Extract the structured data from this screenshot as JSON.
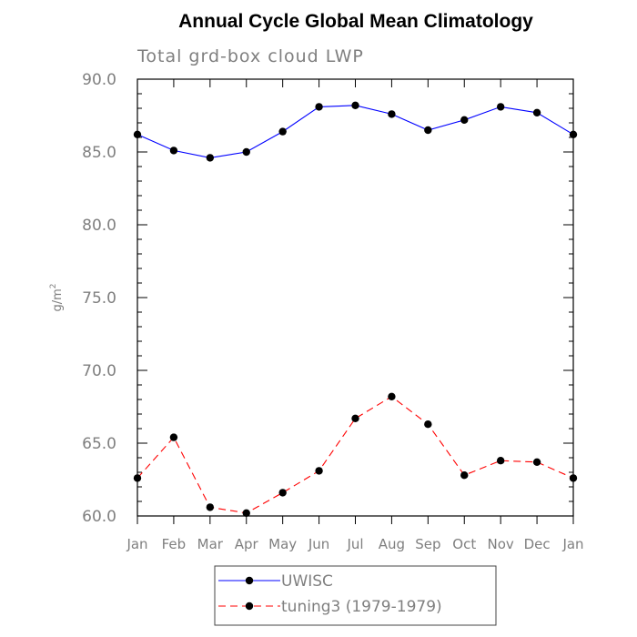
{
  "chart_data": {
    "type": "line",
    "title": "Annual Cycle Global Mean Climatology",
    "subtitle": "Total grd-box cloud LWP",
    "ylabel_base": "g/m",
    "ylabel_sup": "2",
    "categories": [
      "Jan",
      "Feb",
      "Mar",
      "Apr",
      "May",
      "Jun",
      "Jul",
      "Aug",
      "Sep",
      "Oct",
      "Nov",
      "Dec",
      "Jan"
    ],
    "ylim": [
      60,
      90
    ],
    "yticks": [
      60,
      65,
      70,
      75,
      80,
      85,
      90
    ],
    "ytick_labels": [
      "60.0",
      "65.0",
      "70.0",
      "75.0",
      "80.0",
      "85.0",
      "90.0"
    ],
    "grid": false,
    "legend_position": "bottom-center",
    "series": [
      {
        "name": "UWISC",
        "color": "#0000ff",
        "dash": "solid",
        "values": [
          86.2,
          85.1,
          84.6,
          85.0,
          86.4,
          88.1,
          88.2,
          87.6,
          86.5,
          87.2,
          88.1,
          87.7,
          86.2
        ]
      },
      {
        "name": "tuning3 (1979-1979)",
        "color": "#ff0000",
        "dash": "dashed",
        "values": [
          62.6,
          65.4,
          60.6,
          60.2,
          61.6,
          63.1,
          66.7,
          68.2,
          66.3,
          62.8,
          63.8,
          63.7,
          62.6
        ]
      }
    ]
  }
}
